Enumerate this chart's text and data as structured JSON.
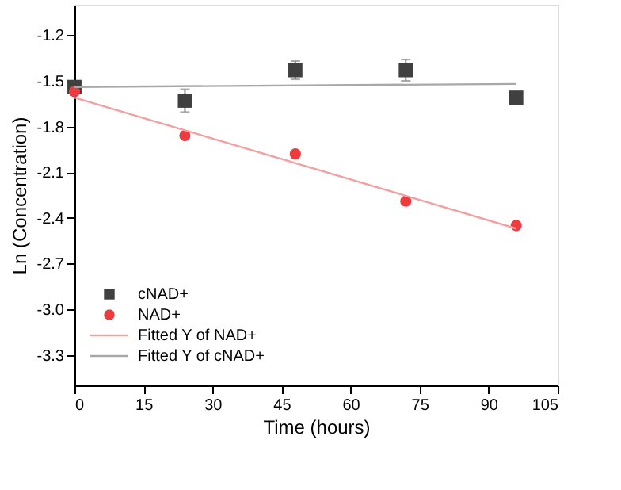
{
  "chart_data": {
    "type": "scatter",
    "xlabel": "Time (hours)",
    "ylabel": "Ln (Concentration)",
    "xlim": [
      0,
      105
    ],
    "xticks": [
      0,
      15,
      30,
      45,
      60,
      75,
      90,
      105
    ],
    "ylim": [
      -3.5,
      -1.0
    ],
    "yticks": [
      {
        "value": -1.2,
        "label": "-1.2"
      },
      {
        "value": -1.5,
        "label": "-1.5"
      },
      {
        "value": -1.8,
        "label": "-1.8"
      },
      {
        "value": -2.1,
        "label": "-2.1"
      },
      {
        "value": -2.4,
        "label": "-2.4"
      },
      {
        "value": -2.7,
        "label": "-2.7"
      },
      {
        "value": -3.0,
        "label": "-3.0"
      },
      {
        "value": -3.3,
        "label": "-3.3"
      }
    ],
    "grid": false,
    "legend": "bottom left",
    "series": [
      {
        "name": "cNAD+",
        "marker": "square",
        "color": "#404040",
        "x": [
          0,
          24,
          48,
          72,
          96
        ],
        "values": [
          -1.54,
          -1.63,
          -1.43,
          -1.43,
          -1.61
        ],
        "errors": [
          null,
          0.075,
          0.06,
          0.07,
          0.02
        ]
      },
      {
        "name": "NAD+",
        "marker": "circle",
        "color": "#ee3b3f",
        "x": [
          0,
          24,
          48,
          72,
          96
        ],
        "values": [
          -1.57,
          -1.86,
          -1.98,
          -2.29,
          -2.45
        ]
      },
      {
        "name": "Fitted Y of NAD+",
        "type": "line",
        "marker": "none",
        "line_style": "solid",
        "color": "#f4a0a0",
        "x": [
          0,
          96
        ],
        "values": [
          -1.61,
          -2.47
        ]
      },
      {
        "name": "Fitted Y of cNAD+",
        "type": "line",
        "marker": "none",
        "line_style": "solid",
        "color": "#a8a8a8",
        "x": [
          0,
          96
        ],
        "values": [
          -1.54,
          -1.52
        ]
      }
    ]
  }
}
